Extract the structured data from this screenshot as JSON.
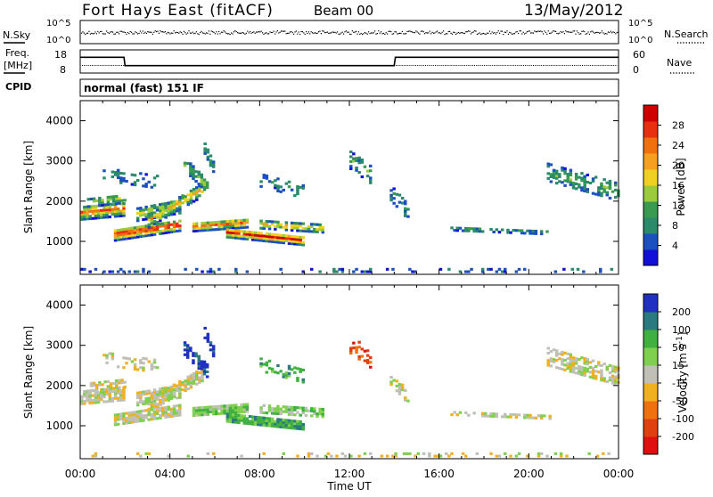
{
  "header": {
    "station": "Fort Hays East (fitACF)",
    "beam": "Beam 00",
    "date": "13/May/2012"
  },
  "strip_labels": {
    "nsky": "N.Sky",
    "nsky_top": "10^5",
    "nsky_bottom": "10^0",
    "nsearch": "N.Search",
    "nsearch_top": "10^5",
    "nsearch_bottom": "10^0",
    "freq": "Freq.",
    "freq_unit": "[MHz]",
    "freq_top": "18",
    "freq_bottom": "8",
    "nave": "Nave",
    "nave_top": "60",
    "nave_bottom": "0",
    "cpid": "CPID",
    "cpid_text": "normal (fast) 151 IF"
  },
  "colors": {
    "power_scale": [
      "#1010d8",
      "#1c50c0",
      "#2a8a6a",
      "#3a9a50",
      "#9acb3c",
      "#f0d020",
      "#f5a020",
      "#f07010",
      "#e83010",
      "#d00000"
    ],
    "velocity_scale": [
      "#2030c0",
      "#2a7a80",
      "#40b040",
      "#80d050",
      "#c0c0b8",
      "#f0b020",
      "#f07010",
      "#e04010",
      "#e01010"
    ]
  },
  "chart_data": [
    {
      "type": "heatmap",
      "title": "Power",
      "ylabel": "Slant Range [km]",
      "xlabel": "",
      "ylim": [
        180,
        4500
      ],
      "xlim": [
        0,
        24
      ],
      "y_ticks": [
        "1000",
        "2000",
        "3000",
        "4000"
      ],
      "colorbar_label": "Power [dB]",
      "colorbar_ticks": [
        "4",
        "8",
        "12",
        "16",
        "20",
        "24",
        "28"
      ]
    },
    {
      "type": "heatmap",
      "title": "Velocity",
      "ylabel": "Slant Range [km]",
      "xlabel": "Time UT",
      "ylim": [
        180,
        4500
      ],
      "xlim": [
        0,
        24
      ],
      "y_ticks": [
        "1000",
        "2000",
        "3000",
        "4000"
      ],
      "x_ticks": [
        "00:00",
        "04:00",
        "08:00",
        "12:00",
        "16:00",
        "20:00",
        "00:00"
      ],
      "colorbar_label": "Velocity [m s^-1]",
      "colorbar_ticks": [
        "200",
        "100",
        "50",
        "15",
        "-15",
        "-50",
        "-100",
        "-200"
      ]
    }
  ],
  "freq_series": {
    "hours": [
      0,
      1.95,
      2.0,
      14.0,
      14.05,
      24
    ],
    "mhz": [
      14.8,
      14.8,
      11.2,
      11.2,
      14.8,
      14.8
    ]
  }
}
